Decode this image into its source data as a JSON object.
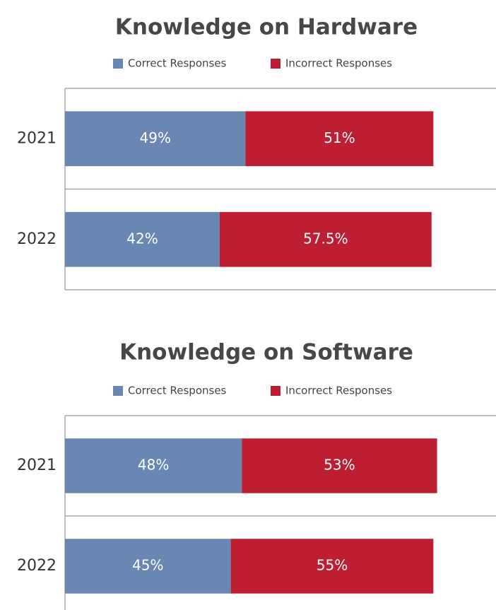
{
  "chart_data": [
    {
      "type": "bar",
      "orientation": "horizontal",
      "stacked": true,
      "title": "Knowledge on Hardware",
      "categories": [
        "2021",
        "2022"
      ],
      "xlim": [
        0,
        117
      ],
      "series": [
        {
          "name": "Correct Responses",
          "color": "#6a86b3",
          "values": [
            49,
            42
          ],
          "value_labels": [
            "49%",
            "42%"
          ]
        },
        {
          "name": "Incorrect Responses",
          "color": "#be1e32",
          "values": [
            51,
            57.5
          ],
          "value_labels": [
            "51%",
            "57.5%"
          ]
        }
      ]
    },
    {
      "type": "bar",
      "orientation": "horizontal",
      "stacked": true,
      "title": "Knowledge on Software",
      "categories": [
        "2021",
        "2022"
      ],
      "xlim": [
        0,
        117
      ],
      "series": [
        {
          "name": "Correct Responses",
          "color": "#6a86b3",
          "values": [
            48,
            45
          ],
          "value_labels": [
            "48%",
            "45%"
          ]
        },
        {
          "name": "Incorrect Responses",
          "color": "#be1e32",
          "values": [
            53,
            55
          ],
          "value_labels": [
            "53%",
            "55%"
          ]
        }
      ]
    }
  ]
}
